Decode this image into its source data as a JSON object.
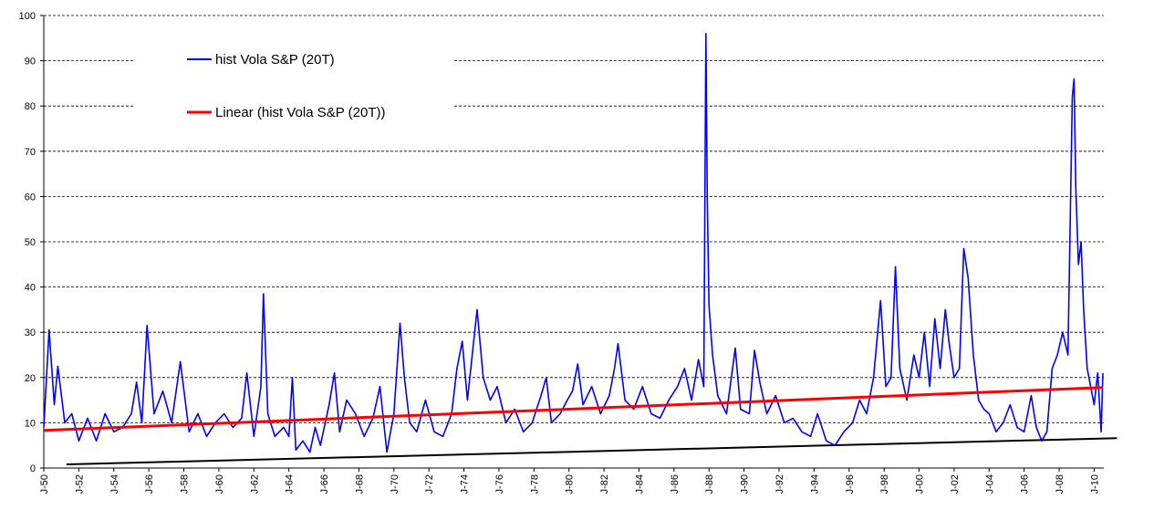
{
  "chart_data": {
    "type": "line",
    "title": "",
    "xlabel": "",
    "ylabel": "",
    "ylim": [
      0,
      100
    ],
    "y_ticks": [
      "0",
      "10",
      "20",
      "30",
      "40",
      "50",
      "60",
      "70",
      "80",
      "90",
      "100"
    ],
    "x_tick_labels": [
      "J-50",
      "J-52",
      "J-54",
      "J-56",
      "J-58",
      "J-60",
      "J-62",
      "J-64",
      "J-66",
      "J-68",
      "J-70",
      "J-72",
      "J-74",
      "J-76",
      "J-78",
      "J-80",
      "J-82",
      "J-84",
      "J-86",
      "J-88",
      "J-90",
      "J-92",
      "J-94",
      "J-96",
      "J-98",
      "J-00",
      "J-02",
      "J-04",
      "J-06",
      "J-08",
      "J-10"
    ],
    "grid": "horizontal dashed",
    "legend_position": "top-left",
    "series": [
      {
        "name": "hist Vola S&P (20T)",
        "color": "#0000ff",
        "points": [
          [
            1950.0,
            9
          ],
          [
            1950.3,
            30.5
          ],
          [
            1950.6,
            14
          ],
          [
            1950.8,
            22.5
          ],
          [
            1951.2,
            10
          ],
          [
            1951.6,
            12
          ],
          [
            1952.0,
            6
          ],
          [
            1952.5,
            11
          ],
          [
            1953.0,
            6
          ],
          [
            1953.5,
            12
          ],
          [
            1954.0,
            8
          ],
          [
            1954.5,
            9
          ],
          [
            1955.0,
            12
          ],
          [
            1955.3,
            19
          ],
          [
            1955.6,
            10
          ],
          [
            1955.9,
            31.5
          ],
          [
            1956.3,
            12
          ],
          [
            1956.8,
            17
          ],
          [
            1957.3,
            10
          ],
          [
            1957.8,
            23.5
          ],
          [
            1958.3,
            8
          ],
          [
            1958.8,
            12
          ],
          [
            1959.3,
            7
          ],
          [
            1959.8,
            10
          ],
          [
            1960.3,
            12
          ],
          [
            1960.8,
            9
          ],
          [
            1961.3,
            11
          ],
          [
            1961.6,
            21
          ],
          [
            1962.0,
            7
          ],
          [
            1962.4,
            18
          ],
          [
            1962.55,
            38.5
          ],
          [
            1962.8,
            12
          ],
          [
            1963.2,
            7
          ],
          [
            1963.7,
            9
          ],
          [
            1964.0,
            7
          ],
          [
            1964.2,
            20
          ],
          [
            1964.4,
            4
          ],
          [
            1964.8,
            6
          ],
          [
            1965.2,
            3.5
          ],
          [
            1965.5,
            9
          ],
          [
            1965.8,
            5
          ],
          [
            1966.3,
            14
          ],
          [
            1966.6,
            21
          ],
          [
            1966.9,
            8
          ],
          [
            1967.3,
            15
          ],
          [
            1967.8,
            12
          ],
          [
            1968.3,
            7
          ],
          [
            1968.8,
            11
          ],
          [
            1969.2,
            18
          ],
          [
            1969.6,
            3.5
          ],
          [
            1970.0,
            12
          ],
          [
            1970.35,
            32
          ],
          [
            1970.6,
            20
          ],
          [
            1970.9,
            10
          ],
          [
            1971.3,
            8
          ],
          [
            1971.8,
            15
          ],
          [
            1972.3,
            8
          ],
          [
            1972.8,
            7
          ],
          [
            1973.3,
            12
          ],
          [
            1973.6,
            22
          ],
          [
            1973.9,
            28
          ],
          [
            1974.2,
            15
          ],
          [
            1974.5,
            26
          ],
          [
            1974.75,
            35
          ],
          [
            1975.1,
            20
          ],
          [
            1975.5,
            15
          ],
          [
            1975.9,
            18
          ],
          [
            1976.4,
            10
          ],
          [
            1976.9,
            13
          ],
          [
            1977.4,
            8
          ],
          [
            1977.9,
            10
          ],
          [
            1978.4,
            16
          ],
          [
            1978.7,
            20
          ],
          [
            1979.0,
            10
          ],
          [
            1979.5,
            12
          ],
          [
            1979.9,
            15
          ],
          [
            1980.2,
            17
          ],
          [
            1980.5,
            23
          ],
          [
            1980.8,
            14
          ],
          [
            1981.3,
            18
          ],
          [
            1981.8,
            12
          ],
          [
            1982.3,
            16
          ],
          [
            1982.6,
            22
          ],
          [
            1982.8,
            27.5
          ],
          [
            1983.2,
            15
          ],
          [
            1983.7,
            13
          ],
          [
            1984.2,
            18
          ],
          [
            1984.7,
            12
          ],
          [
            1985.2,
            11
          ],
          [
            1985.7,
            15
          ],
          [
            1986.2,
            18
          ],
          [
            1986.6,
            22
          ],
          [
            1987.0,
            15
          ],
          [
            1987.4,
            24
          ],
          [
            1987.7,
            18
          ],
          [
            1987.82,
            96
          ],
          [
            1987.9,
            60
          ],
          [
            1988.0,
            36
          ],
          [
            1988.2,
            25
          ],
          [
            1988.5,
            16
          ],
          [
            1989.0,
            12
          ],
          [
            1989.5,
            26.5
          ],
          [
            1989.8,
            13
          ],
          [
            1990.3,
            12
          ],
          [
            1990.6,
            26
          ],
          [
            1990.9,
            19
          ],
          [
            1991.3,
            12
          ],
          [
            1991.8,
            16
          ],
          [
            1992.3,
            10
          ],
          [
            1992.8,
            11
          ],
          [
            1993.3,
            8
          ],
          [
            1993.8,
            7
          ],
          [
            1994.2,
            12
          ],
          [
            1994.7,
            6
          ],
          [
            1995.2,
            5
          ],
          [
            1995.7,
            8
          ],
          [
            1996.2,
            10
          ],
          [
            1996.6,
            15
          ],
          [
            1997.0,
            12
          ],
          [
            1997.4,
            20
          ],
          [
            1997.8,
            37
          ],
          [
            1998.1,
            18
          ],
          [
            1998.4,
            20
          ],
          [
            1998.65,
            44.5
          ],
          [
            1998.9,
            22
          ],
          [
            1999.3,
            15
          ],
          [
            1999.7,
            25
          ],
          [
            2000.0,
            20
          ],
          [
            2000.3,
            30
          ],
          [
            2000.6,
            18
          ],
          [
            2000.9,
            33
          ],
          [
            2001.2,
            22
          ],
          [
            2001.5,
            35
          ],
          [
            2001.7,
            28
          ],
          [
            2002.0,
            20
          ],
          [
            2002.3,
            22
          ],
          [
            2002.55,
            48.5
          ],
          [
            2002.8,
            42
          ],
          [
            2003.1,
            25
          ],
          [
            2003.4,
            15
          ],
          [
            2003.7,
            13
          ],
          [
            2004.0,
            12
          ],
          [
            2004.4,
            8
          ],
          [
            2004.8,
            10
          ],
          [
            2005.2,
            14
          ],
          [
            2005.6,
            9
          ],
          [
            2006.0,
            8
          ],
          [
            2006.4,
            16
          ],
          [
            2006.7,
            9
          ],
          [
            2007.0,
            6
          ],
          [
            2007.3,
            8
          ],
          [
            2007.6,
            22
          ],
          [
            2007.9,
            25
          ],
          [
            2008.2,
            30
          ],
          [
            2008.5,
            25
          ],
          [
            2008.75,
            82
          ],
          [
            2008.85,
            86
          ],
          [
            2008.95,
            62
          ],
          [
            2009.1,
            45
          ],
          [
            2009.25,
            50
          ],
          [
            2009.4,
            35
          ],
          [
            2009.6,
            22
          ],
          [
            2009.8,
            18
          ],
          [
            2010.0,
            14
          ],
          [
            2010.2,
            21
          ],
          [
            2010.4,
            8
          ],
          [
            2010.5,
            21
          ]
        ]
      },
      {
        "name": "Linear (hist Vola S&P (20T))",
        "color": "#ff0000",
        "points": [
          [
            1950.0,
            8.3
          ],
          [
            2010.5,
            17.8
          ]
        ]
      },
      {
        "color": "#000000",
        "points": [
          [
            1951.3,
            0.8
          ],
          [
            2011.3,
            6.6
          ]
        ]
      }
    ]
  }
}
